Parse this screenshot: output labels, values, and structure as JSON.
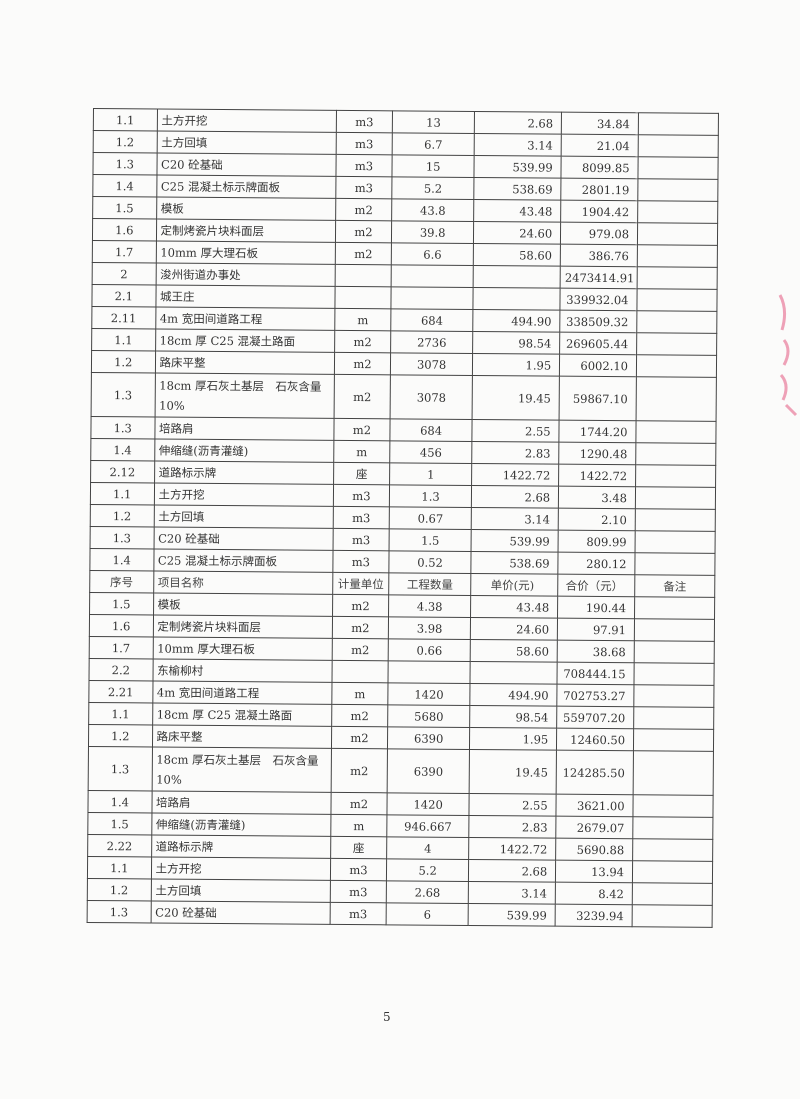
{
  "header": {
    "seq": "序号",
    "name": "项目名称",
    "unit": "计量单位",
    "qty": "工程数量",
    "price": "单价(元)",
    "total": "合价（元）",
    "note": "备注"
  },
  "rows": [
    {
      "seq": "1.1",
      "name": "土方开挖",
      "unit": "m3",
      "qty": "13",
      "price": "2.68",
      "total": "34.84"
    },
    {
      "seq": "1.2",
      "name": "土方回填",
      "unit": "m3",
      "qty": "6.7",
      "price": "3.14",
      "total": "21.04"
    },
    {
      "seq": "1.3",
      "name": "C20 砼基础",
      "unit": "m3",
      "qty": "15",
      "price": "539.99",
      "total": "8099.85"
    },
    {
      "seq": "1.4",
      "name": "C25 混凝土标示牌面板",
      "unit": "m3",
      "qty": "5.2",
      "price": "538.69",
      "total": "2801.19"
    },
    {
      "seq": "1.5",
      "name": "模板",
      "unit": "m2",
      "qty": "43.8",
      "price": "43.48",
      "total": "1904.42"
    },
    {
      "seq": "1.6",
      "name": "定制烤瓷片块料面层",
      "unit": "m2",
      "qty": "39.8",
      "price": "24.60",
      "total": "979.08"
    },
    {
      "seq": "1.7",
      "name": "10mm 厚大理石板",
      "unit": "m2",
      "qty": "6.6",
      "price": "58.60",
      "total": "386.76"
    },
    {
      "seq": "2",
      "name": "浚州街道办事处",
      "unit": "",
      "qty": "",
      "price": "",
      "total": "2473414.91"
    },
    {
      "seq": "2.1",
      "name": "城王庄",
      "unit": "",
      "qty": "",
      "price": "",
      "total": "339932.04"
    },
    {
      "seq": "2.11",
      "name": "4m 宽田间道路工程",
      "unit": "m",
      "qty": "684",
      "price": "494.90",
      "total": "338509.32"
    },
    {
      "seq": "1.1",
      "name": "18cm 厚 C25 混凝土路面",
      "unit": "m2",
      "qty": "2736",
      "price": "98.54",
      "total": "269605.44"
    },
    {
      "seq": "1.2",
      "name": "路床平整",
      "unit": "m2",
      "qty": "3078",
      "price": "1.95",
      "total": "6002.10"
    },
    {
      "seq": "1.3",
      "name": "18cm 厚石灰土基层　石灰含量10%",
      "unit": "m2",
      "qty": "3078",
      "price": "19.45",
      "total": "59867.10",
      "tall": true
    },
    {
      "seq": "1.3",
      "name": "培路肩",
      "unit": "m2",
      "qty": "684",
      "price": "2.55",
      "total": "1744.20"
    },
    {
      "seq": "1.4",
      "name": "伸缩缝(沥青灌缝)",
      "unit": "m",
      "qty": "456",
      "price": "2.83",
      "total": "1290.48"
    },
    {
      "seq": "2.12",
      "name": "道路标示牌",
      "unit": "座",
      "qty": "1",
      "price": "1422.72",
      "total": "1422.72"
    },
    {
      "seq": "1.1",
      "name": "土方开挖",
      "unit": "m3",
      "qty": "1.3",
      "price": "2.68",
      "total": "3.48"
    },
    {
      "seq": "1.2",
      "name": "土方回填",
      "unit": "m3",
      "qty": "0.67",
      "price": "3.14",
      "total": "2.10"
    },
    {
      "seq": "1.3",
      "name": "C20 砼基础",
      "unit": "m3",
      "qty": "1.5",
      "price": "539.99",
      "total": "809.99"
    },
    {
      "seq": "1.4",
      "name": "C25 混凝土标示牌面板",
      "unit": "m3",
      "qty": "0.52",
      "price": "538.69",
      "total": "280.12"
    },
    {
      "header": true
    },
    {
      "seq": "1.5",
      "name": "模板",
      "unit": "m2",
      "qty": "4.38",
      "price": "43.48",
      "total": "190.44"
    },
    {
      "seq": "1.6",
      "name": "定制烤瓷片块料面层",
      "unit": "m2",
      "qty": "3.98",
      "price": "24.60",
      "total": "97.91"
    },
    {
      "seq": "1.7",
      "name": "10mm 厚大理石板",
      "unit": "m2",
      "qty": "0.66",
      "price": "58.60",
      "total": "38.68"
    },
    {
      "seq": "2.2",
      "name": "东榆柳村",
      "unit": "",
      "qty": "",
      "price": "",
      "total": "708444.15"
    },
    {
      "seq": "2.21",
      "name": "4m 宽田间道路工程",
      "unit": "m",
      "qty": "1420",
      "price": "494.90",
      "total": "702753.27"
    },
    {
      "seq": "1.1",
      "name": "18cm 厚 C25 混凝土路面",
      "unit": "m2",
      "qty": "5680",
      "price": "98.54",
      "total": "559707.20"
    },
    {
      "seq": "1.2",
      "name": "路床平整",
      "unit": "m2",
      "qty": "6390",
      "price": "1.95",
      "total": "12460.50"
    },
    {
      "seq": "1.3",
      "name": "18cm 厚石灰土基层　石灰含量10%",
      "unit": "m2",
      "qty": "6390",
      "price": "19.45",
      "total": "124285.50",
      "tall": true
    },
    {
      "seq": "1.4",
      "name": "培路肩",
      "unit": "m2",
      "qty": "1420",
      "price": "2.55",
      "total": "3621.00"
    },
    {
      "seq": "1.5",
      "name": "伸缩缝(沥青灌缝)",
      "unit": "m",
      "qty": "946.667",
      "price": "2.83",
      "total": "2679.07"
    },
    {
      "seq": "2.22",
      "name": "道路标示牌",
      "unit": "座",
      "qty": "4",
      "price": "1422.72",
      "total": "5690.88"
    },
    {
      "seq": "1.1",
      "name": "土方开挖",
      "unit": "m3",
      "qty": "5.2",
      "price": "2.68",
      "total": "13.94"
    },
    {
      "seq": "1.2",
      "name": "土方回填",
      "unit": "m3",
      "qty": "2.68",
      "price": "3.14",
      "total": "8.42"
    },
    {
      "seq": "1.3",
      "name": "C20 砼基础",
      "unit": "m3",
      "qty": "6",
      "price": "539.99",
      "total": "3239.94"
    }
  ],
  "page_number": "5",
  "colors": {
    "stamp": "#e87a9a",
    "ink": "#333333"
  }
}
